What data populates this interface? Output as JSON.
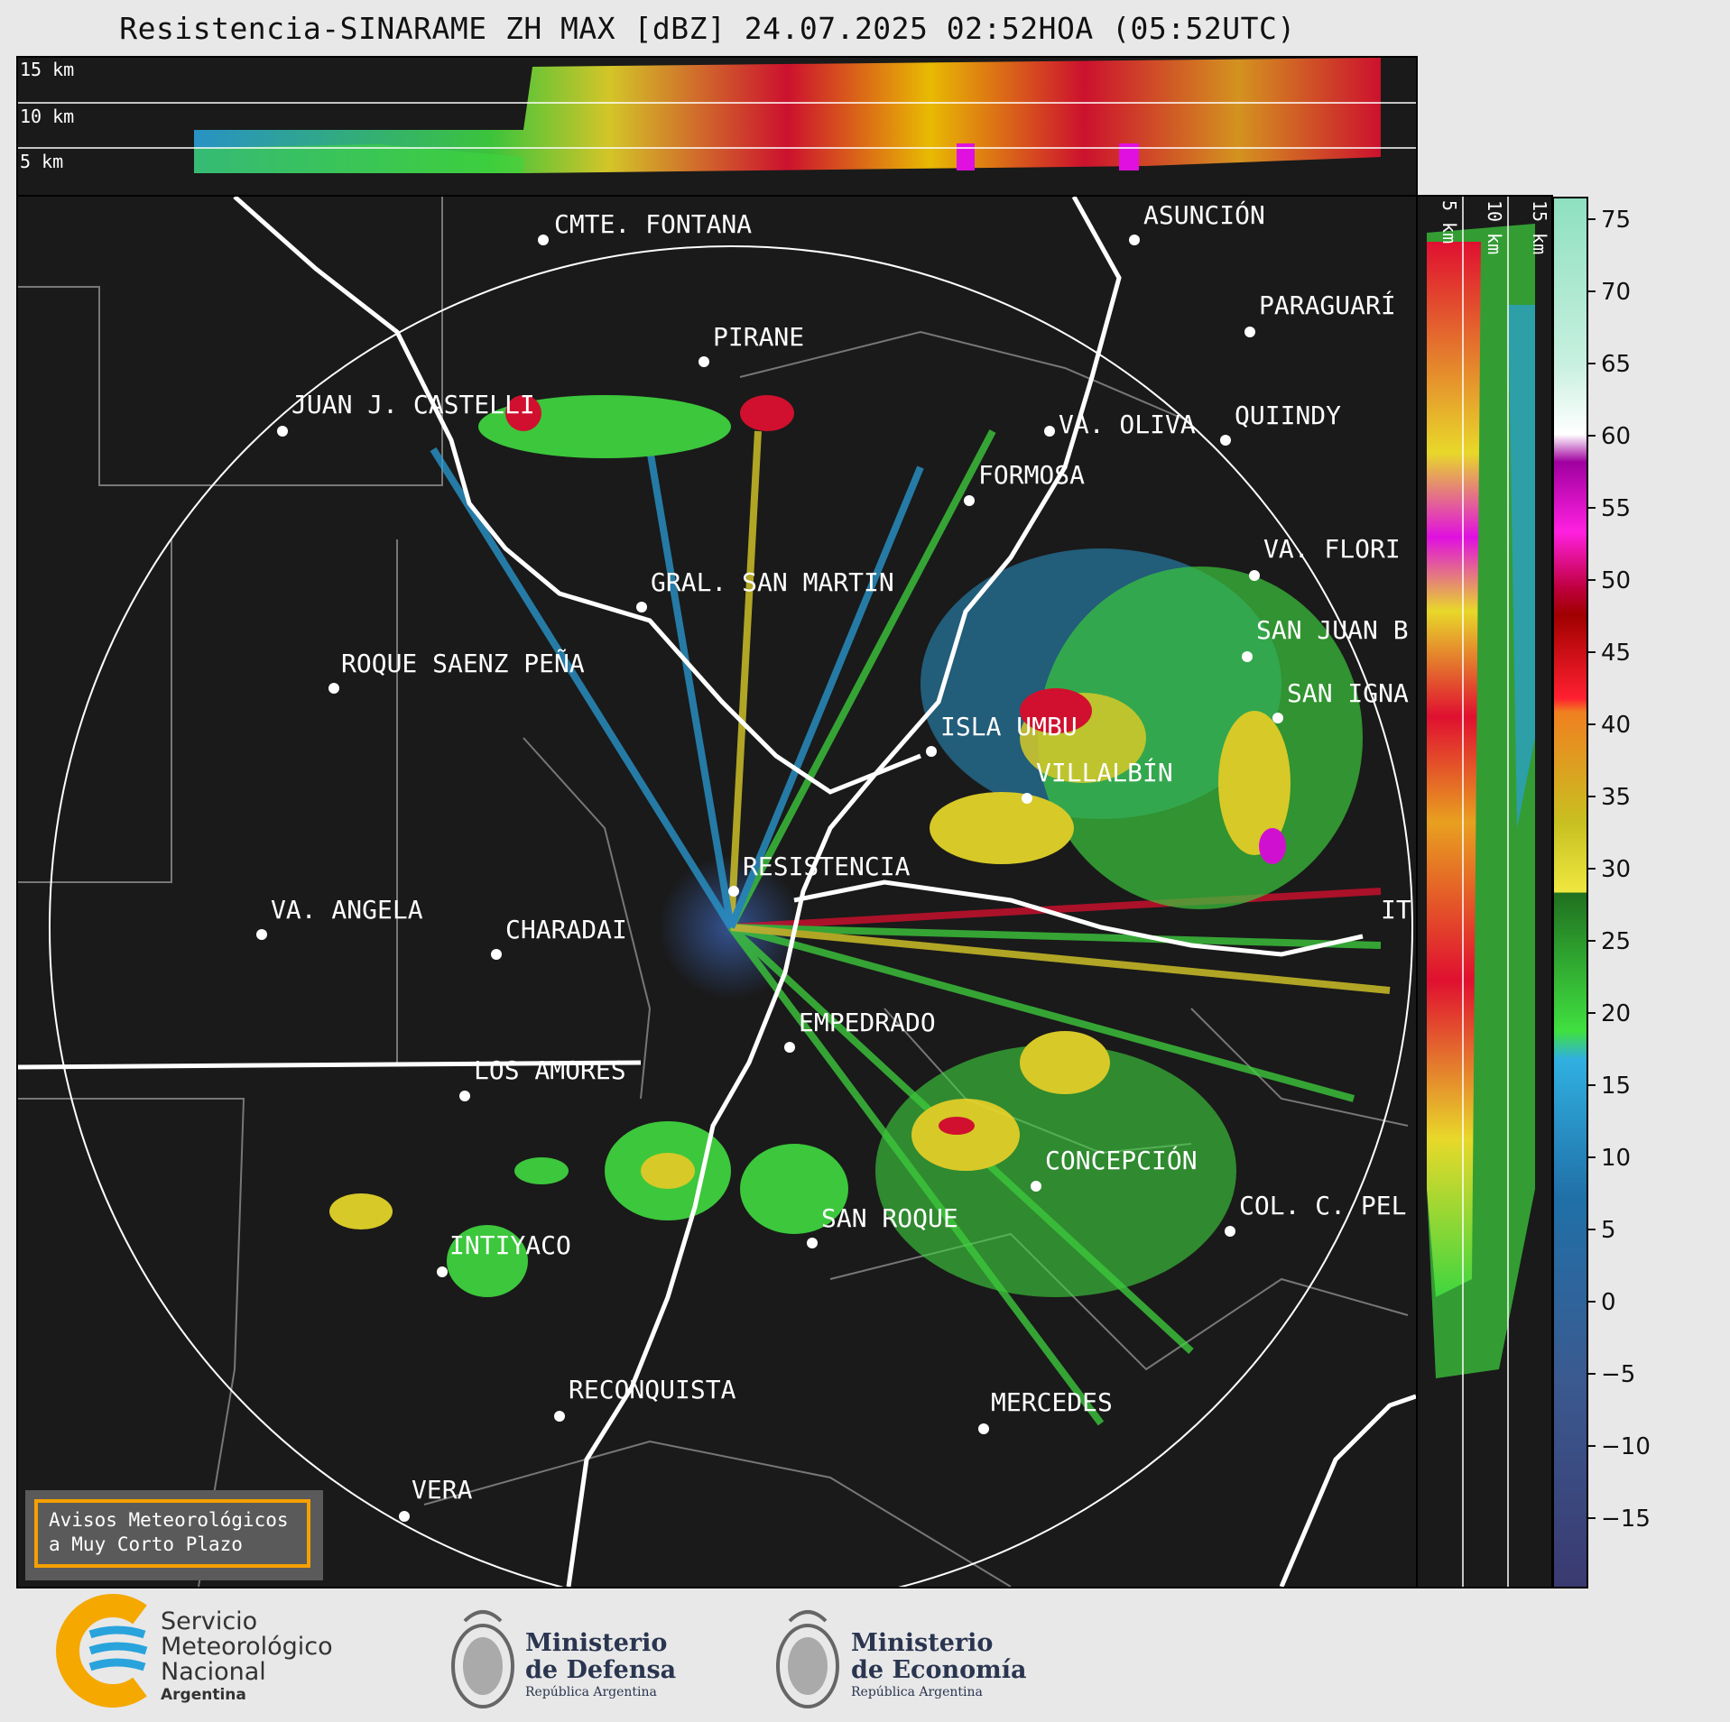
{
  "title": "Resistencia-SINARAME ZH MAX [dBZ] 24.07.2025 02:52HOA (05:52UTC)",
  "top_panel": {
    "altitudes": [
      "15 km",
      "10 km",
      "5 km"
    ]
  },
  "side_panel": {
    "altitudes": [
      "5 km",
      "10 km",
      "15 km"
    ]
  },
  "colorbar": {
    "unit": "dBZ",
    "ticks": [
      "75",
      "70",
      "65",
      "60",
      "55",
      "50",
      "45",
      "40",
      "35",
      "30",
      "25",
      "20",
      "15",
      "10",
      "5",
      "0",
      "−5",
      "−10",
      "−15"
    ]
  },
  "cities": [
    "CMTE. FONTANA",
    "ASUNCIÓN",
    "PARAGUARÍ",
    "PIRANE",
    "JUAN J. CASTELLI",
    "VA. OLIVA",
    "QUIINDY",
    "FORMOSA",
    "VA. FLORI",
    "GRAL. SAN MARTIN",
    "SAN JUAN B",
    "ROQUE SAENZ PEÑA",
    "SAN IGNA",
    "ISLA UMBU",
    "VILLALBÍN",
    "RESISTENCIA",
    "IT",
    "VA. ANGELA",
    "CHARADAI",
    "EMPEDRADO",
    "LOS AMORES",
    "CONCEPCIÓN",
    "COL. C. PEL",
    "SAN ROQUE",
    "INTIYACO",
    "RECONQUISTA",
    "MERCEDES",
    "VERA"
  ],
  "warning_box": {
    "line1": "Avisos Meteorológicos",
    "line2": "a Muy Corto Plazo"
  },
  "logos": {
    "smn": {
      "line1": "Servicio",
      "line2": "Meteorológico",
      "line3": "Nacional",
      "line4": "Argentina"
    },
    "defensa": {
      "line1": "Ministerio",
      "line2": "de Defensa",
      "line3": "República Argentina"
    },
    "economia": {
      "line1": "Ministerio",
      "line2": "de Economía",
      "line3": "República Argentina"
    }
  },
  "colors": {
    "background": "#1a1a1a",
    "page": "#e8e8e8",
    "accent": "#f5a000"
  }
}
